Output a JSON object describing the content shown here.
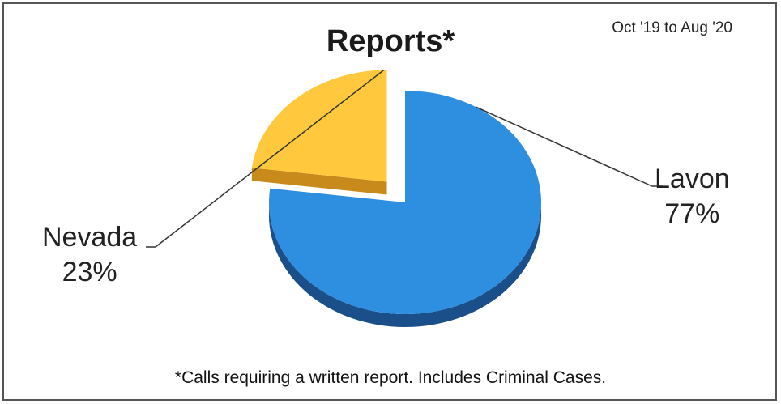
{
  "chart_data": {
    "type": "pie",
    "title": "Reports*",
    "subtitle": "Oct '19 to Aug '20",
    "footnote": "*Calls requiring a written report.  Includes Criminal Cases.",
    "slices": [
      {
        "name": "Lavon",
        "value": 77,
        "label": "77%",
        "color": "#2E8FE0",
        "side_color": "#1A4F8A"
      },
      {
        "name": "Nevada",
        "value": 23,
        "label": "23%",
        "color": "#FFC83D",
        "side_color": "#C88A1A"
      }
    ]
  }
}
